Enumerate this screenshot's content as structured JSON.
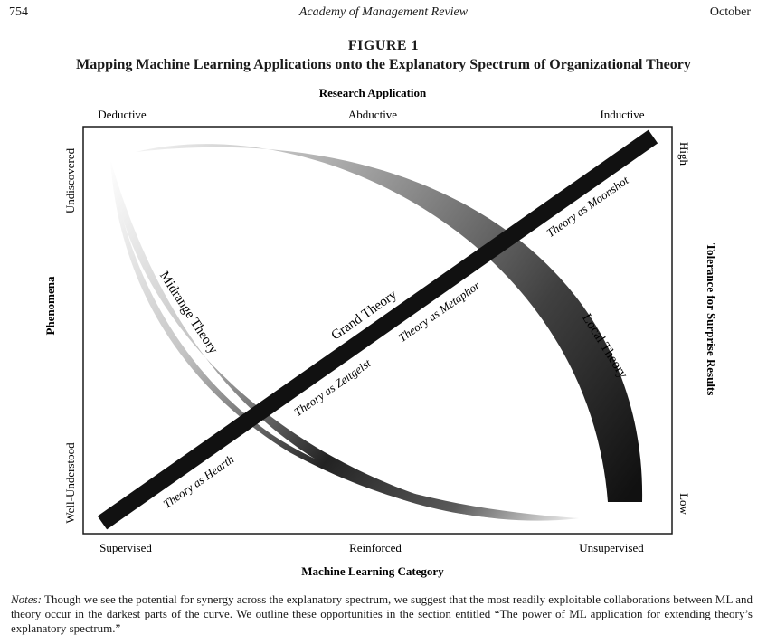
{
  "header": {
    "page_number": "754",
    "journal": "Academy of Management Review",
    "month": "October"
  },
  "figure": {
    "label": "FIGURE 1",
    "title": "Mapping Machine Learning Applications onto the Explanatory Spectrum of Organizational Theory",
    "top_axis_title": "Research Application",
    "top_ticks": [
      "Deductive",
      "Abductive",
      "Inductive"
    ],
    "bottom_axis_title": "Machine Learning Category",
    "bottom_ticks": [
      "Supervised",
      "Reinforced",
      "Unsupervised"
    ],
    "left_axis_title": "Phenomena",
    "left_ticks": [
      "Undiscovered",
      "Well-Understood"
    ],
    "right_axis_title": "Tolerance for Surprise Results",
    "right_ticks": [
      "High",
      "Low"
    ],
    "curves": {
      "midrange": "Midrange Theory",
      "local": "Local Theory",
      "grand": "Grand Theory"
    },
    "annotations": {
      "moonshot": "Theory as Moonshot",
      "metaphor": "Theory as Metaphor",
      "zeitgeist": "Theory as Zeitgeist",
      "hearth": "Theory as Hearth"
    }
  },
  "notes": {
    "label": "Notes:",
    "text": "Though we see the potential for synergy across the explanatory spectrum, we suggest that the most readily exploitable collaborations between ML and theory occur in the darkest parts of the curve. We outline these opportunities in the section entitled “The power of ML application for extending theory’s explanatory spectrum.”"
  }
}
